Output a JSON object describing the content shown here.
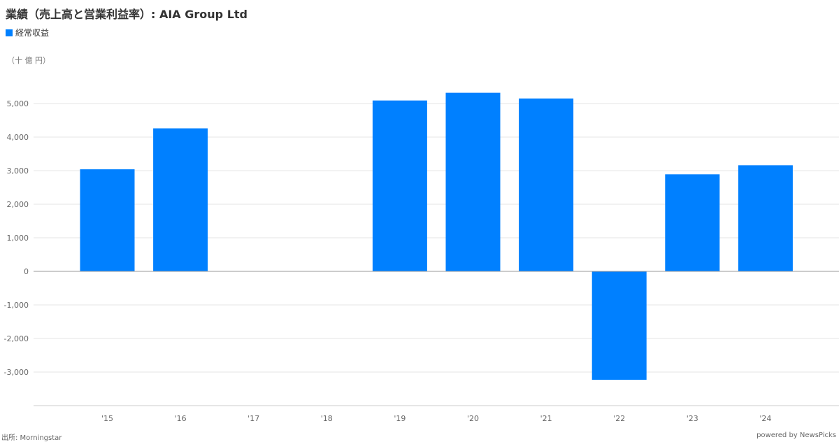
{
  "title": "業績（売上高と営業利益率）: AIA Group Ltd",
  "unit_label": "（十 億 円）",
  "source": "出所: Morningstar",
  "powered_by": "powered by NewsPicks",
  "colors": {
    "bar": "#0080ff",
    "grid": "#e6e6e6",
    "zero_line": "#999999",
    "axis": "#cccccc"
  },
  "chart_data": {
    "type": "bar",
    "categories": [
      "'15",
      "'16",
      "'17",
      "'18",
      "'19",
      "'20",
      "'21",
      "'22",
      "'23",
      "'24"
    ],
    "series": [
      {
        "name": "経常収益",
        "values": [
          3040,
          4260,
          null,
          null,
          5090,
          5320,
          5150,
          -3230,
          2890,
          3160
        ]
      }
    ],
    "ylim": [
      -4000,
      5500
    ],
    "yticks": [
      5000,
      4000,
      3000,
      2000,
      1000,
      0,
      -1000,
      -2000,
      -3000
    ],
    "ytick_labels": [
      "5,000",
      "4,000",
      "3,000",
      "2,000",
      "1,000",
      "0",
      "-1,000",
      "-2,000",
      "-3,000"
    ],
    "grid": true,
    "legend": "top-left"
  }
}
